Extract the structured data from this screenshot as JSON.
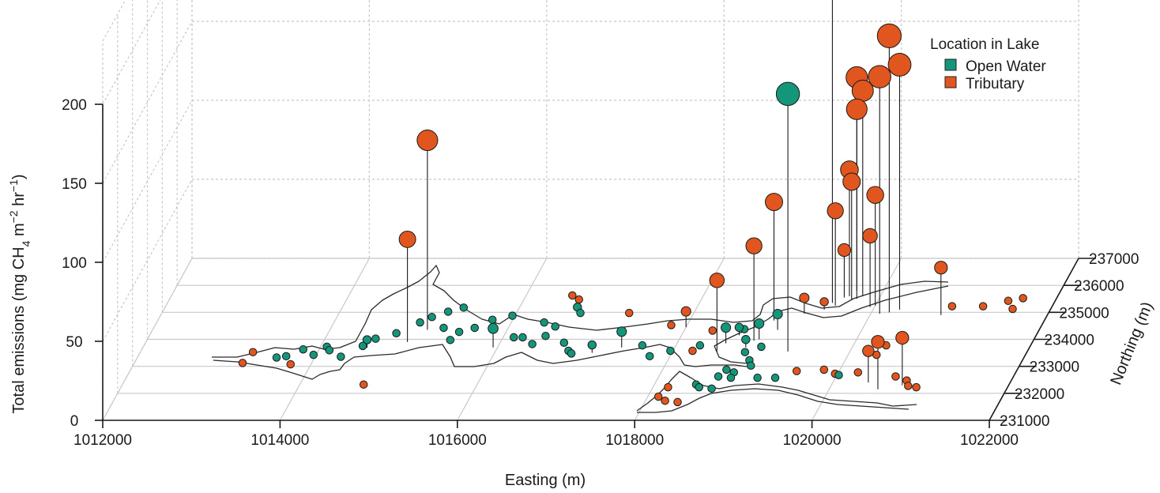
{
  "chart_data": {
    "type": "scatter",
    "subtype": "3d-lollipop",
    "title": "",
    "xlabel": "Easting (m)",
    "ylabel": "Northing (m)",
    "zlabel_main": "Total emissions (mg CH",
    "zlabel_sub": "4",
    "zlabel_mid": " m",
    "zlabel_sup1": "−2",
    "zlabel_mid2": " hr",
    "zlabel_sup2": "−1",
    "zlabel_end": ")",
    "xlim": [
      1012000,
      1022000
    ],
    "ylim": [
      231000,
      237000
    ],
    "zlim": [
      0,
      200
    ],
    "x_ticks": [
      "1012000",
      "1014000",
      "1016000",
      "1018000",
      "1020000",
      "1022000"
    ],
    "y_ticks": [
      "231000",
      "232000",
      "233000",
      "234000",
      "235000",
      "236000",
      "237000"
    ],
    "z_ticks": [
      "0",
      "50",
      "100",
      "150",
      "200"
    ],
    "grid": true,
    "legend": {
      "title": "Location in Lake",
      "position": "top-right",
      "entries": [
        {
          "name": "Open Water",
          "color": "#13967a"
        },
        {
          "name": "Tributary",
          "color": "#e0561e"
        }
      ]
    },
    "series": [
      {
        "name": "Open Water",
        "color": "#13967a",
        "points": [
          [
            1014500,
            233580,
            3
          ],
          [
            1014320,
            233180,
            3
          ],
          [
            1014530,
            233690,
            5
          ],
          [
            1014100,
            233550,
            3
          ],
          [
            1013850,
            233450,
            3
          ],
          [
            1013700,
            233200,
            3
          ],
          [
            1013600,
            233150,
            3
          ],
          [
            1014000,
            233250,
            3
          ],
          [
            1014150,
            233420,
            3
          ],
          [
            1014600,
            233850,
            3
          ],
          [
            1014800,
            234050,
            3
          ],
          [
            1015000,
            234450,
            3
          ],
          [
            1015100,
            234650,
            3
          ],
          [
            1015250,
            234850,
            3
          ],
          [
            1015400,
            235000,
            3
          ],
          [
            1015300,
            234250,
            3
          ],
          [
            1015500,
            234100,
            3
          ],
          [
            1015450,
            233800,
            3
          ],
          [
            1015650,
            234250,
            3
          ],
          [
            1015800,
            234550,
            3
          ],
          [
            1016000,
            234700,
            3
          ],
          [
            1016400,
            234450,
            3
          ],
          [
            1016700,
            234900,
            5
          ],
          [
            1016750,
            234800,
            3
          ],
          [
            1016550,
            234300,
            3
          ],
          [
            1015950,
            233700,
            12
          ],
          [
            1016150,
            233900,
            3
          ],
          [
            1016400,
            233650,
            3
          ],
          [
            1016750,
            233700,
            3
          ],
          [
            1016900,
            233300,
            3
          ],
          [
            1017100,
            233500,
            5
          ],
          [
            1017400,
            233700,
            10
          ],
          [
            1017650,
            233600,
            3
          ],
          [
            1017800,
            233200,
            3
          ],
          [
            1018000,
            233400,
            3
          ],
          [
            1018300,
            233600,
            3
          ],
          [
            1018550,
            233850,
            10
          ],
          [
            1018650,
            234150,
            5
          ],
          [
            1018700,
            234200,
            3
          ],
          [
            1018800,
            233700,
            5
          ],
          [
            1018900,
            234000,
            10
          ],
          [
            1019050,
            234350,
            10
          ],
          [
            1018850,
            233350,
            3
          ],
          [
            1018950,
            233050,
            3
          ],
          [
            1019000,
            232850,
            3
          ],
          [
            1018750,
            232700,
            3
          ],
          [
            1018850,
            232600,
            3
          ],
          [
            1018700,
            232450,
            3
          ],
          [
            1018850,
            232400,
            3
          ],
          [
            1018500,
            232150,
            3
          ],
          [
            1018550,
            232050,
            3
          ],
          [
            1018700,
            232000,
            3
          ],
          [
            1019150,
            232400,
            3
          ],
          [
            1019350,
            232400,
            3
          ],
          [
            1020050,
            232500,
            3
          ],
          [
            1016250,
            233900,
            3
          ],
          [
            1016500,
            233950,
            3
          ],
          [
            1016850,
            233400,
            3
          ],
          [
            1019000,
            233550,
            3
          ],
          [
            1019300,
            233550,
            163
          ]
        ]
      },
      {
        "name": "Tributary",
        "color": "#e0561e",
        "points": [
          [
            1013250,
            232950,
            3
          ],
          [
            1013300,
            233350,
            3
          ],
          [
            1013800,
            232900,
            3
          ],
          [
            1014750,
            232150,
            3
          ],
          [
            1014950,
            233900,
            65
          ],
          [
            1015100,
            234350,
            120
          ],
          [
            1016550,
            235450,
            3
          ],
          [
            1016650,
            235300,
            3
          ],
          [
            1017300,
            234800,
            3
          ],
          [
            1017850,
            234350,
            3
          ],
          [
            1018000,
            234450,
            10
          ],
          [
            1018350,
            234150,
            3
          ],
          [
            1018250,
            233400,
            3
          ],
          [
            1018500,
            233550,
            45
          ],
          [
            1018850,
            233950,
            60
          ],
          [
            1018950,
            234700,
            75
          ],
          [
            1019250,
            234950,
            10
          ],
          [
            1019450,
            235100,
            5
          ],
          [
            1019550,
            235250,
            60
          ],
          [
            1019600,
            235550,
            30
          ],
          [
            1019650,
            235600,
            80
          ],
          [
            1019700,
            235450,
            75
          ],
          [
            1019800,
            235600,
            130
          ],
          [
            1019700,
            235800,
            135
          ],
          [
            1019750,
            235500,
            120
          ],
          [
            1019500,
            235350,
            220
          ],
          [
            1019950,
            235200,
            45
          ],
          [
            1020000,
            235250,
            70
          ],
          [
            1020100,
            234950,
            150
          ],
          [
            1020200,
            235000,
            175
          ],
          [
            1020300,
            235100,
            155
          ],
          [
            1020350,
            233250,
            3
          ],
          [
            1020400,
            233600,
            3
          ],
          [
            1020800,
            234900,
            30
          ],
          [
            1020900,
            235050,
            3
          ],
          [
            1021250,
            235050,
            3
          ],
          [
            1021500,
            235250,
            3
          ],
          [
            1021650,
            235350,
            3
          ],
          [
            1021600,
            234950,
            3
          ],
          [
            1019550,
            232650,
            3
          ],
          [
            1019850,
            232700,
            3
          ],
          [
            1020000,
            232550,
            3
          ],
          [
            1020250,
            232600,
            3
          ],
          [
            1020400,
            232400,
            20
          ],
          [
            1020700,
            232450,
            3
          ],
          [
            1020850,
            232300,
            3
          ],
          [
            1020900,
            232100,
            3
          ],
          [
            1021000,
            232050,
            3
          ],
          [
            1020550,
            232150,
            30
          ],
          [
            1020800,
            232300,
            30
          ],
          [
            1018200,
            232050,
            3
          ],
          [
            1018150,
            231700,
            3
          ],
          [
            1018250,
            231550,
            3
          ],
          [
            1018400,
            231500,
            3
          ]
        ]
      }
    ]
  }
}
